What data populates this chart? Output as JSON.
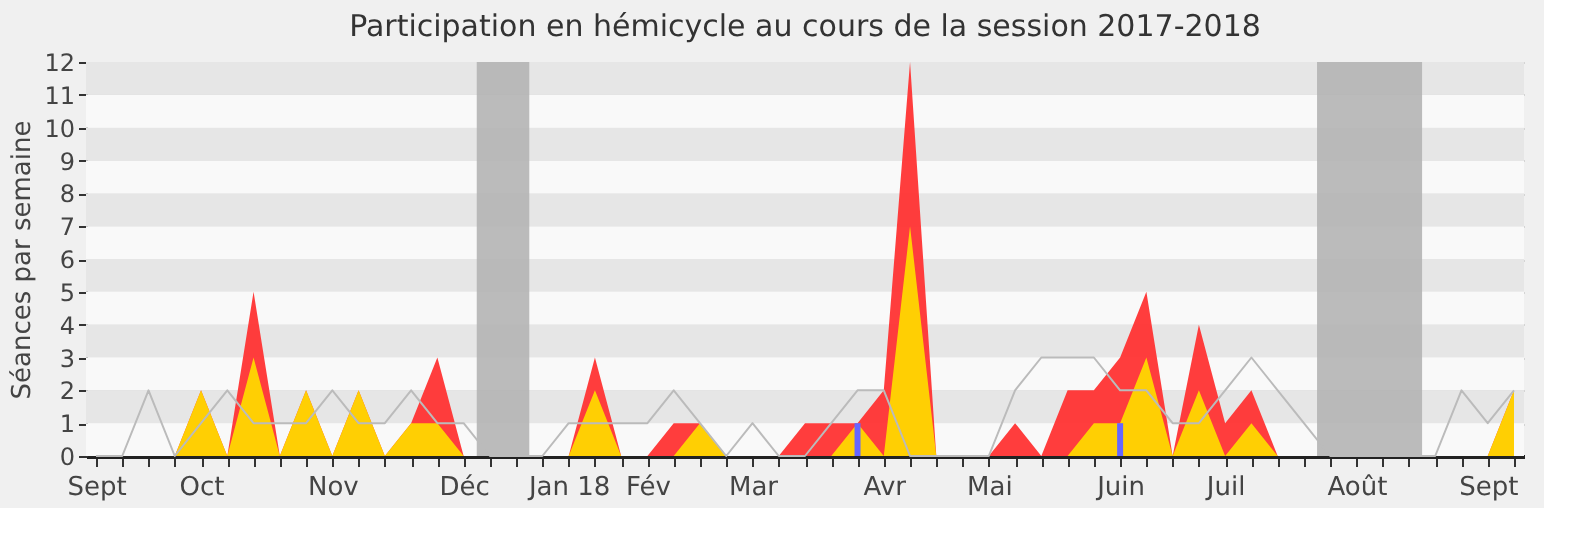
{
  "chart_data": {
    "type": "area",
    "title": "Participation en hémicycle au cours de la session 2017-2018",
    "ylabel": "Séances par semaine",
    "categories": [
      "Sept",
      null,
      null,
      null,
      "Oct",
      null,
      null,
      null,
      null,
      "Nov",
      null,
      null,
      null,
      null,
      "Déc",
      null,
      null,
      null,
      "Jan 18",
      null,
      null,
      "Fév",
      null,
      null,
      null,
      "Mar",
      null,
      null,
      null,
      null,
      "Avr",
      null,
      null,
      null,
      "Mai",
      null,
      null,
      null,
      null,
      "Juin",
      null,
      null,
      null,
      "Juil",
      null,
      null,
      null,
      null,
      "Août",
      null,
      null,
      null,
      null,
      "Sept",
      null
    ],
    "series": [
      {
        "type": "line",
        "color": "#bbbbbb",
        "values": [
          0,
          0,
          2,
          0,
          1,
          2,
          1,
          1,
          1,
          2,
          1,
          1,
          2,
          1,
          1,
          0,
          0,
          0,
          1,
          1,
          1,
          1,
          2,
          1,
          0,
          1,
          0,
          0,
          1,
          2,
          2,
          0,
          0,
          0,
          0,
          2,
          3,
          3,
          3,
          2,
          2,
          1,
          1,
          2,
          3,
          2,
          1,
          0,
          0,
          0,
          0,
          0,
          2,
          1,
          2
        ]
      },
      {
        "color": "#ff3333",
        "values": [
          0,
          0,
          0,
          0,
          2,
          0,
          5,
          0,
          2,
          0,
          2,
          0,
          1,
          3,
          0,
          0,
          0,
          0,
          0,
          3,
          0,
          0,
          1,
          1,
          0,
          0,
          0,
          1,
          1,
          1,
          2,
          12,
          0,
          0,
          0,
          1,
          0,
          2,
          2,
          3,
          5,
          0,
          4,
          1,
          2,
          0,
          0,
          0,
          0,
          0,
          0,
          0,
          0,
          0,
          2
        ]
      },
      {
        "color": "#ffd700",
        "values": [
          0,
          0,
          0,
          0,
          2,
          0,
          3,
          0,
          2,
          0,
          2,
          0,
          1,
          1,
          0,
          0,
          0,
          0,
          0,
          2,
          0,
          0,
          0,
          1,
          0,
          0,
          0,
          0,
          0,
          1,
          0,
          7,
          0,
          0,
          0,
          0,
          0,
          0,
          1,
          1,
          3,
          0,
          2,
          0,
          1,
          0,
          0,
          0,
          0,
          0,
          0,
          0,
          0,
          0,
          2
        ]
      },
      {
        "type": "bar",
        "color": "#6666ff",
        "values": [
          null,
          null,
          null,
          null,
          null,
          null,
          null,
          null,
          null,
          null,
          null,
          null,
          null,
          null,
          null,
          null,
          null,
          null,
          null,
          null,
          null,
          null,
          null,
          null,
          null,
          null,
          null,
          null,
          null,
          1,
          null,
          null,
          null,
          null,
          null,
          null,
          null,
          null,
          null,
          1,
          null,
          null,
          null,
          null,
          null,
          null,
          null,
          null,
          null,
          null,
          null,
          null,
          null,
          null,
          null
        ]
      }
    ],
    "ylim": [
      0,
      12
    ],
    "yticks": [
      0,
      1,
      2,
      3,
      4,
      5,
      6,
      7,
      8,
      9,
      10,
      11,
      12
    ],
    "grid": "y",
    "marker": "none"
  }
}
